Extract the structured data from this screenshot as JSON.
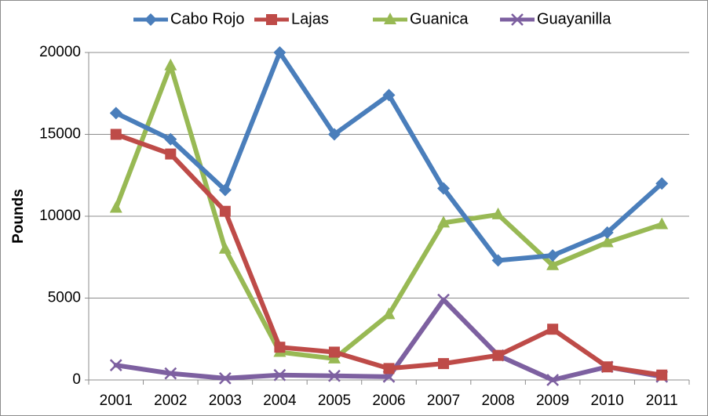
{
  "chart_data": {
    "type": "line",
    "ylabel": "Pounds",
    "xlabel": "",
    "ylim": [
      0,
      20000
    ],
    "yticks": [
      "0",
      "5000",
      "10000",
      "15000",
      "20000"
    ],
    "categories": [
      "2001",
      "2002",
      "2003",
      "2004",
      "2005",
      "2006",
      "2007",
      "2008",
      "2009",
      "2010",
      "2011"
    ],
    "grid": "horizontal",
    "legend_position": "top",
    "series": [
      {
        "name": "Cabo Rojo",
        "color": "#4a7ebb",
        "marker": "diamond",
        "values": [
          16300,
          14700,
          11600,
          20000,
          15000,
          17400,
          11700,
          7300,
          7600,
          9000,
          12000
        ]
      },
      {
        "name": "Lajas",
        "color": "#be4b48",
        "marker": "square",
        "values": [
          15000,
          13800,
          10300,
          2000,
          1700,
          700,
          1000,
          1500,
          3100,
          800,
          300
        ]
      },
      {
        "name": "Guanica",
        "color": "#98b954",
        "marker": "triangle",
        "values": [
          10500,
          19200,
          8000,
          1700,
          1300,
          4000,
          9600,
          10100,
          7000,
          8400,
          9500
        ]
      },
      {
        "name": "Guayanilla",
        "color": "#7d60a0",
        "marker": "x",
        "values": [
          900,
          400,
          100,
          300,
          250,
          200,
          4900,
          1500,
          0,
          800,
          200
        ]
      }
    ]
  }
}
